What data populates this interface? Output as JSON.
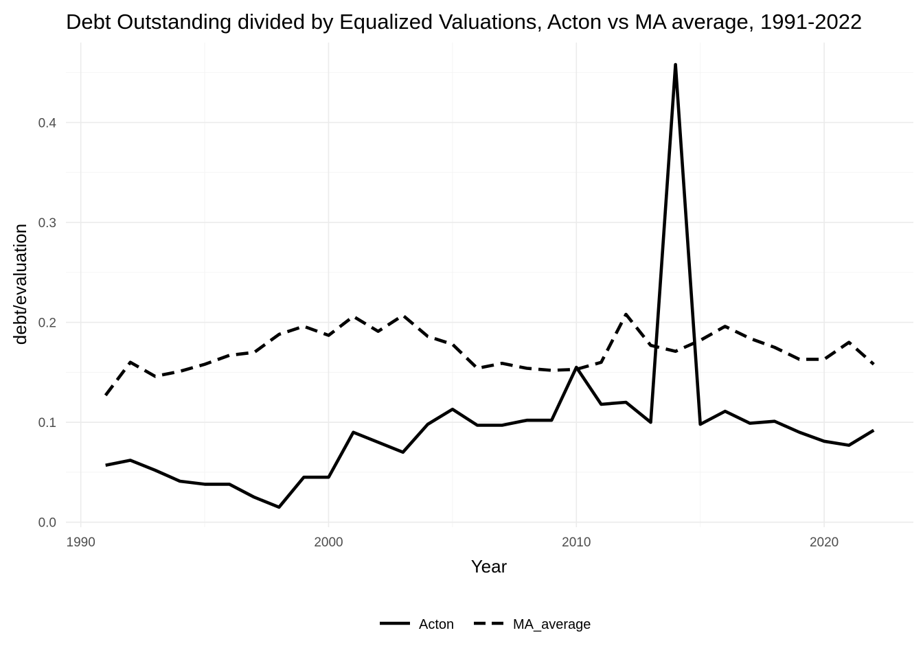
{
  "chart_data": {
    "type": "line",
    "title": "Debt Outstanding divided by Equalized Valuations, Acton vs MA average, 1991-2022",
    "xlabel": "Year",
    "ylabel": "debt/evaluation",
    "xlim": [
      1989.4,
      2023.6
    ],
    "ylim": [
      -0.005,
      0.48
    ],
    "x_ticks": [
      1990,
      2000,
      2010,
      2020
    ],
    "y_ticks": [
      0.0,
      0.1,
      0.2,
      0.3,
      0.4
    ],
    "x_tick_labels": [
      "1990",
      "2000",
      "2010",
      "2020"
    ],
    "y_tick_labels": [
      "0.0",
      "0.1",
      "0.2",
      "0.3",
      "0.4"
    ],
    "grid": true,
    "legend_position": "bottom",
    "x": [
      1991,
      1992,
      1993,
      1994,
      1995,
      1996,
      1997,
      1998,
      1999,
      2000,
      2001,
      2002,
      2003,
      2004,
      2005,
      2006,
      2007,
      2008,
      2009,
      2010,
      2011,
      2012,
      2013,
      2014,
      2015,
      2016,
      2017,
      2018,
      2019,
      2020,
      2021,
      2022
    ],
    "series": [
      {
        "name": "Acton",
        "linetype": "solid",
        "color": "#000000",
        "values": [
          0.057,
          0.062,
          0.052,
          0.041,
          0.038,
          0.038,
          0.025,
          0.015,
          0.045,
          0.045,
          0.09,
          0.08,
          0.07,
          0.098,
          0.113,
          0.097,
          0.097,
          0.102,
          0.102,
          0.155,
          0.118,
          0.12,
          0.1,
          0.458,
          0.098,
          0.111,
          0.099,
          0.101,
          0.09,
          0.081,
          0.077,
          0.092
        ]
      },
      {
        "name": "MA_average",
        "linetype": "dashed",
        "color": "#000000",
        "values": [
          0.127,
          0.16,
          0.146,
          0.151,
          0.158,
          0.167,
          0.17,
          0.188,
          0.196,
          0.187,
          0.206,
          0.191,
          0.207,
          0.186,
          0.178,
          0.154,
          0.159,
          0.154,
          0.152,
          0.153,
          0.16,
          0.208,
          0.177,
          0.171,
          0.182,
          0.196,
          0.184,
          0.175,
          0.163,
          0.163,
          0.18,
          0.158
        ]
      }
    ]
  }
}
